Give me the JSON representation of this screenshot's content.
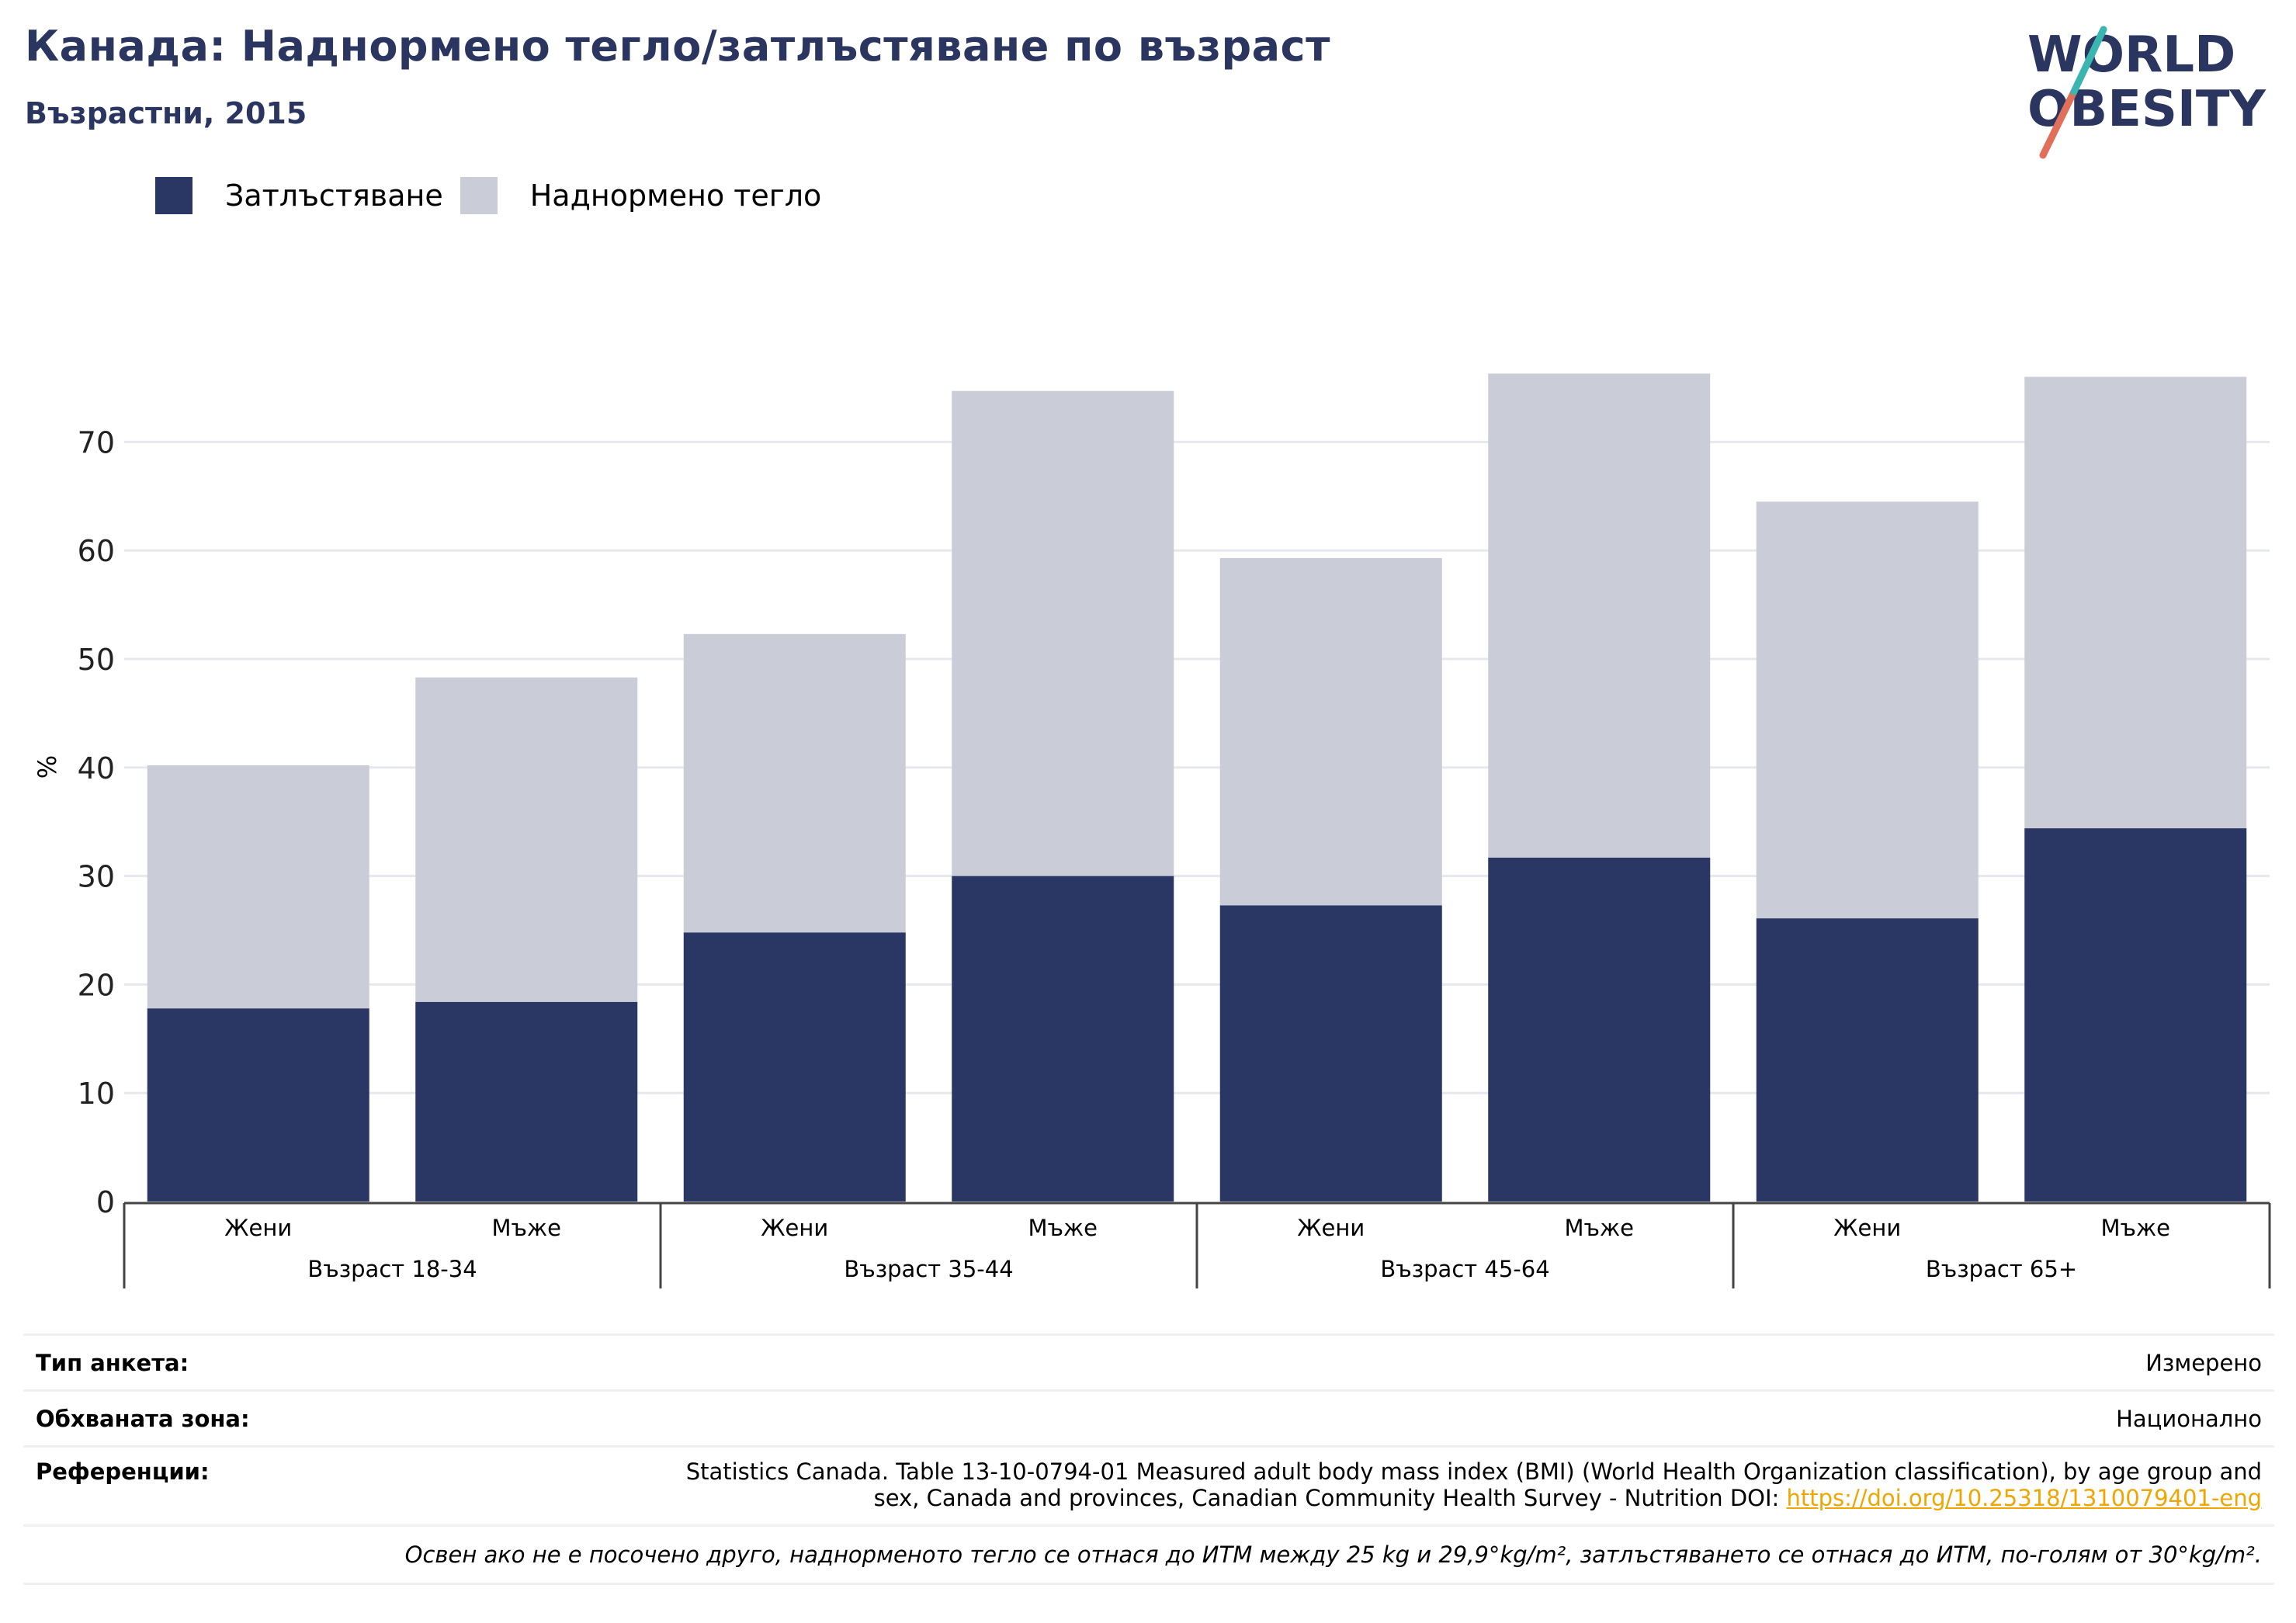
{
  "title": "Канада: Наднормено тегло/затлъстяване по възраст",
  "subtitle": "Възрастни, 2015",
  "logo": {
    "line1": "WORLD",
    "line2": "OBESITY"
  },
  "colors": {
    "obesity": "#2a3663",
    "overweight": "#caccd8",
    "title": "#2a3560",
    "grid": "#e6e8ee",
    "link": "#f0a500",
    "logo_slash_red": "#e0705a",
    "logo_slash_teal": "#3ab5b0"
  },
  "legend": [
    {
      "label": "Затлъстяване",
      "color": "#2a3663"
    },
    {
      "label": "Наднормено тегло",
      "color": "#caccd8"
    }
  ],
  "chart_data": {
    "type": "bar",
    "stacked": true,
    "ylabel": "%",
    "ylim": [
      0,
      80
    ],
    "yticks": [
      0,
      10,
      20,
      30,
      40,
      50,
      60,
      70
    ],
    "grid": true,
    "legend_position": "top-left",
    "categories": [
      "Жени",
      "Мъже",
      "Жени",
      "Мъже",
      "Жени",
      "Мъже",
      "Жени",
      "Мъже"
    ],
    "groups": [
      {
        "label": "Възраст 18-34",
        "categories": [
          "Жени",
          "Мъже"
        ]
      },
      {
        "label": "Възраст 35-44",
        "categories": [
          "Жени",
          "Мъже"
        ]
      },
      {
        "label": "Възраст 45-64",
        "categories": [
          "Жени",
          "Мъже"
        ]
      },
      {
        "label": "Възраст 65+",
        "categories": [
          "Жени",
          "Мъже"
        ]
      }
    ],
    "series": [
      {
        "name": "Затлъстяване",
        "values": [
          17.8,
          18.4,
          24.8,
          30.0,
          27.3,
          31.7,
          26.1,
          34.4
        ]
      },
      {
        "name": "Наднормено тегло",
        "values": [
          22.4,
          29.9,
          27.5,
          44.7,
          32.0,
          44.6,
          38.4,
          41.6
        ]
      }
    ]
  },
  "footer": {
    "rows": [
      {
        "label": "Тип анкета:",
        "value": "Измерено"
      },
      {
        "label": "Обхваната зона:",
        "value": "Национално"
      }
    ],
    "references_label": "Референции:",
    "references_line1": "Statistics Canada. Table 13-10-0794-01 Measured adult body mass index (BMI) (World Health Organization classification), by age group and",
    "references_line2": "sex, Canada and provinces, Canadian Community Health Survey - Nutrition DOI: ",
    "references_link": "https://doi.org/10.25318/1310079401-eng",
    "note": "Освен ако не е посочено друго, наднорменото тегло се отнася до ИТМ между 25 kg и 29,9°kg/m², затлъстяването се отнася до ИТМ, по-голям от 30°kg/m²."
  }
}
